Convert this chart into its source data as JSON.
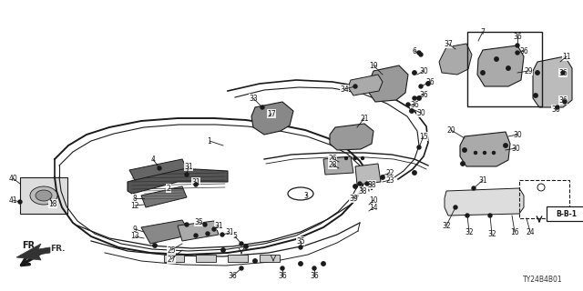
{
  "bg_color": "#ffffff",
  "line_color": "#1a1a1a",
  "diagram_code": "TY24B4B01",
  "fig_w": 6.4,
  "fig_h": 3.2,
  "dpi": 100,
  "xlim": [
    0,
    640
  ],
  "ylim": [
    0,
    320
  ]
}
